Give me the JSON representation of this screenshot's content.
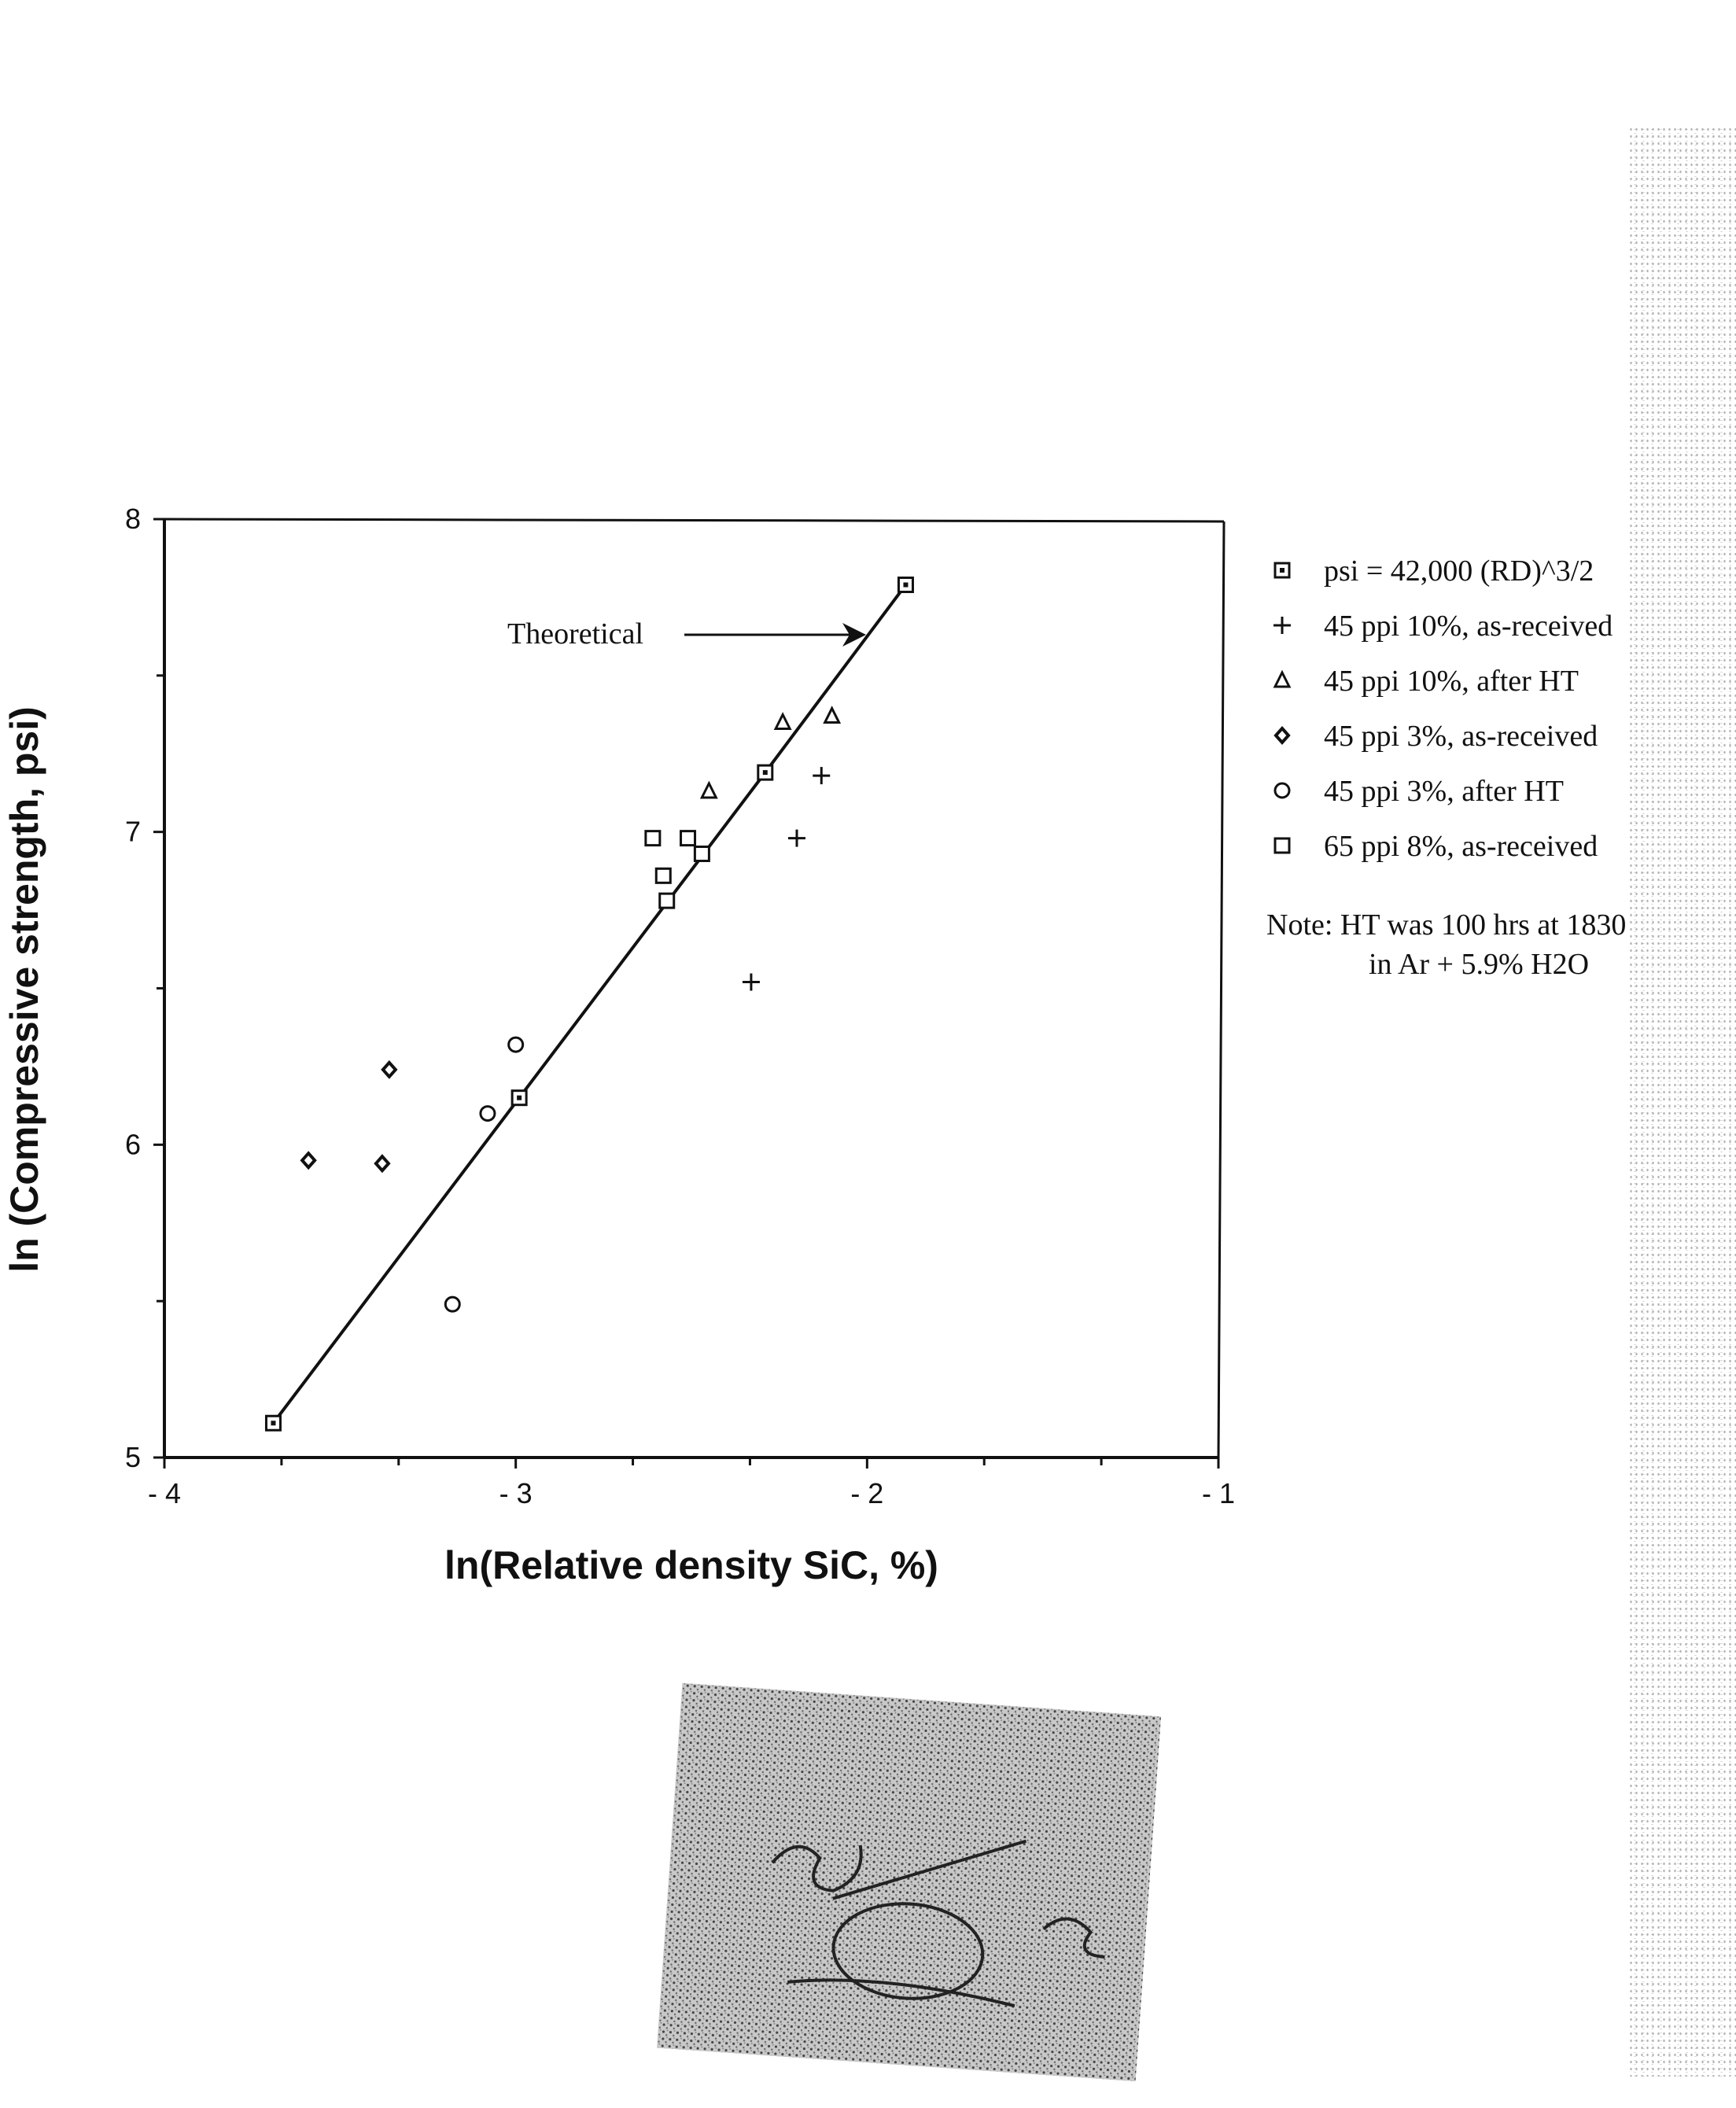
{
  "chart_data": {
    "type": "scatter",
    "xlabel": "ln(Relative density SiC, %)",
    "ylabel": "ln (Compressive strength, psi)",
    "xlim": [
      -4,
      -1
    ],
    "ylim": [
      5,
      8
    ],
    "xticks": [
      -4,
      -3,
      -2,
      -1
    ],
    "xtick_labels": [
      "- 4",
      "- 3",
      "- 2",
      "- 1"
    ],
    "yticks": [
      5,
      6,
      7,
      8
    ],
    "ytick_labels": [
      "5",
      "6",
      "7",
      "8"
    ],
    "grid": false,
    "legend_position": "right",
    "series": [
      {
        "name": "psi = 42,000 (RD)^3/2",
        "marker": "square-dot",
        "line": true,
        "points": [
          [
            -3.69,
            5.11
          ],
          [
            -2.99,
            6.15
          ],
          [
            -2.29,
            7.19
          ],
          [
            -1.89,
            7.79
          ]
        ]
      },
      {
        "name": "45 ppi 10%, as-received",
        "marker": "plus",
        "points": [
          [
            -2.33,
            6.52
          ],
          [
            -2.2,
            6.98
          ],
          [
            -2.13,
            7.18
          ]
        ]
      },
      {
        "name": "45 ppi 10%, after HT",
        "marker": "triangle",
        "points": [
          [
            -2.45,
            7.13
          ],
          [
            -2.24,
            7.35
          ],
          [
            -2.1,
            7.37
          ]
        ]
      },
      {
        "name": "45 ppi 3%, as-received",
        "marker": "diamond",
        "points": [
          [
            -3.59,
            5.95
          ],
          [
            -3.38,
            5.94
          ],
          [
            -3.36,
            6.24
          ]
        ]
      },
      {
        "name": "45 ppi 3%, after HT",
        "marker": "circle",
        "points": [
          [
            -3.18,
            5.49
          ],
          [
            -3.08,
            6.1
          ],
          [
            -3.0,
            6.32
          ]
        ]
      },
      {
        "name": "65 ppi 8%, as-received",
        "marker": "square",
        "points": [
          [
            -2.61,
            6.98
          ],
          [
            -2.58,
            6.86
          ],
          [
            -2.57,
            6.78
          ],
          [
            -2.51,
            6.98
          ],
          [
            -2.47,
            6.93
          ]
        ]
      }
    ],
    "annotations": [
      {
        "text": "Theoretical",
        "arrow_to": [
          -1.98,
          7.63
        ]
      }
    ]
  },
  "note": {
    "line1": "Note:  HT was 100 hrs at 1830",
    "line2": "in Ar + 5.9% H2O"
  },
  "colors": {
    "ink": "#111111",
    "paper": "#ffffff"
  }
}
